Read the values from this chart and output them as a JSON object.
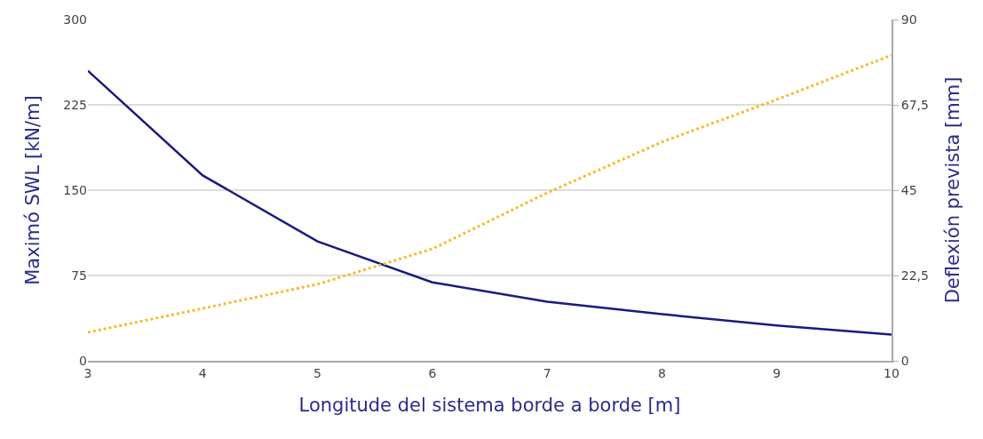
{
  "chart_data": {
    "type": "line",
    "xlabel": "Longitude del sistema borde a borde [m]",
    "ylabel": "Maximó SWL [kN/m]",
    "y2label": "Deflexión prevista [mm]",
    "x": [
      3,
      4,
      5,
      6,
      7,
      8,
      9,
      10
    ],
    "series": [
      {
        "color": "#1a1a80",
        "values": [
          255,
          163,
          105,
          69,
          52,
          41,
          31,
          23
        ],
        "line_style": "solid"
      },
      {
        "color": "#f0c030",
        "values": [
          7.5,
          13.8,
          20.2,
          29.5,
          44.3,
          57.7,
          68.9,
          80.6
        ],
        "axis": "y2",
        "line_style": "dotted"
      }
    ],
    "xlim": [
      3,
      10
    ],
    "xticks": [
      3,
      4,
      5,
      6,
      7,
      8,
      9,
      10
    ],
    "ylim": [
      0,
      300
    ],
    "yticks": [
      0,
      75,
      150,
      225,
      300
    ],
    "y2lim": [
      0,
      90
    ],
    "y2ticks": [
      0,
      {
        "value": 22.5,
        "label": "22,5"
      },
      45,
      {
        "value": 67.5,
        "label": "67,5"
      },
      90
    ],
    "grid": "y",
    "marker": "none"
  }
}
